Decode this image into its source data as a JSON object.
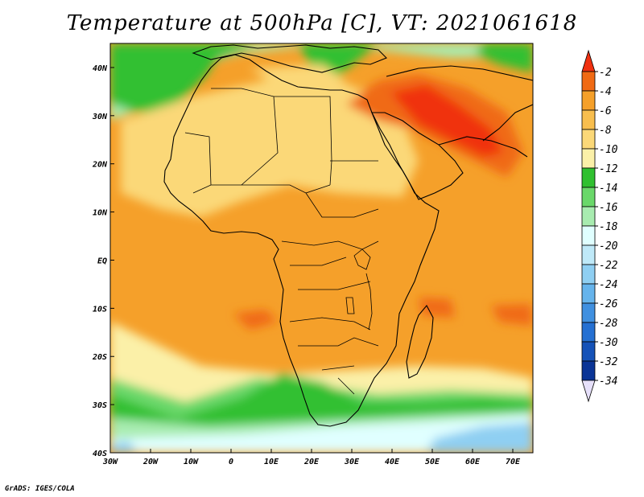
{
  "title": "Temperature at 500hPa [C], VT: 2021061618",
  "credit": "GrADS: IGES/COLA",
  "map": {
    "lon_range": [
      -30,
      75
    ],
    "lat_range": [
      -40,
      45
    ],
    "lon_ticks": [
      {
        "value": -30,
        "label": "30W"
      },
      {
        "value": -20,
        "label": "20W"
      },
      {
        "value": -10,
        "label": "10W"
      },
      {
        "value": 0,
        "label": "0"
      },
      {
        "value": 10,
        "label": "10E"
      },
      {
        "value": 20,
        "label": "20E"
      },
      {
        "value": 30,
        "label": "30E"
      },
      {
        "value": 40,
        "label": "40E"
      },
      {
        "value": 50,
        "label": "50E"
      },
      {
        "value": 60,
        "label": "60E"
      },
      {
        "value": 70,
        "label": "70E"
      }
    ],
    "lat_ticks": [
      {
        "value": 40,
        "label": "40N"
      },
      {
        "value": 30,
        "label": "30N"
      },
      {
        "value": 20,
        "label": "20N"
      },
      {
        "value": 10,
        "label": "10N"
      },
      {
        "value": 0,
        "label": "EQ"
      },
      {
        "value": -10,
        "label": "10S"
      },
      {
        "value": -20,
        "label": "20S"
      },
      {
        "value": -30,
        "label": "30S"
      },
      {
        "value": -40,
        "label": "40S"
      }
    ]
  },
  "colorbar": {
    "levels": [
      -2,
      -4,
      -6,
      -8,
      -10,
      -12,
      -14,
      -16,
      -18,
      -20,
      -22,
      -24,
      -26,
      -28,
      -30,
      -32,
      -34
    ],
    "colors": [
      "#f03010",
      "#f06a14",
      "#f5a02a",
      "#f8be4e",
      "#fbd878",
      "#fbf0a8",
      "#30c030",
      "#6ad86a",
      "#a8ecb0",
      "#e0ffff",
      "#bfe9f8",
      "#8fcff2",
      "#66b4ec",
      "#4090e0",
      "#2570d2",
      "#1552b8",
      "#0a3496",
      "#0a1870"
    ],
    "top_color": "#f03010",
    "bottom_color": "#e6e0fa"
  },
  "field_colors": {
    "land_warm": "#f8be4e",
    "ocean_warm": "#f5a02a",
    "sahara": "#fbd878",
    "hot": "#f06a14",
    "hottest": "#f03010",
    "green": "#30c030",
    "lightgreen": "#6ad86a",
    "palegreen": "#a8ecb0",
    "cyan": "#e0ffff",
    "lightblue": "#8fcff2",
    "pale": "#fbf0a8"
  }
}
